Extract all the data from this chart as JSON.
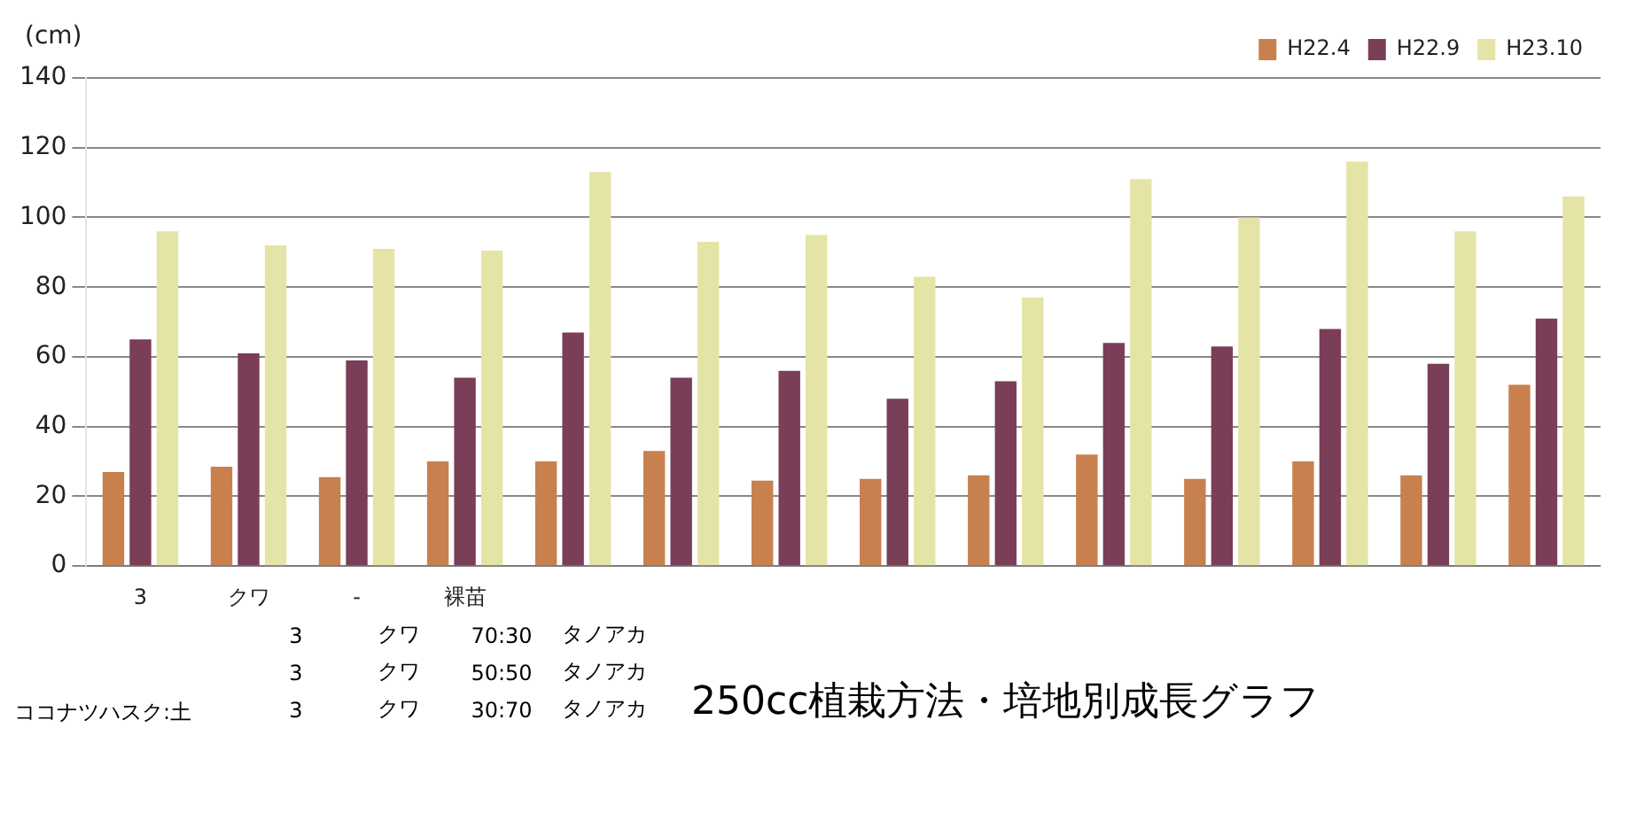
{
  "chart_data": {
    "type": "bar",
    "title": "250cc植栽方法・培地別成長グラフ",
    "ylabel": "(cm)",
    "categories": [
      "3",
      "クワ",
      "-",
      "裸苗",
      null,
      null,
      null,
      null,
      null,
      null,
      null,
      null,
      null,
      null
    ],
    "series": [
      {
        "name": "H22.4",
        "color": "#c8804e",
        "values": [
          27,
          28.5,
          25.5,
          30,
          30,
          33,
          24.5,
          25,
          26,
          32,
          25,
          30,
          26,
          52
        ]
      },
      {
        "name": "H22.9",
        "color": "#7a3e58",
        "values": [
          65,
          61,
          59,
          54,
          67,
          54,
          56,
          48,
          53,
          64,
          63,
          68,
          58,
          71
        ]
      },
      {
        "name": "H23.10",
        "color": "#e4e4a6",
        "values": [
          96,
          92,
          91,
          90.5,
          113,
          93,
          95,
          83,
          77,
          111,
          100,
          116,
          96,
          106
        ]
      }
    ],
    "ylim": [
      0,
      140
    ],
    "yticks": [
      0,
      20,
      40,
      60,
      80,
      100,
      120,
      140
    ],
    "grid": "y",
    "legend": "top right",
    "annotations": [
      "3",
      "クワ",
      "70:30",
      "タノアカ",
      "3",
      "クワ",
      "50:50",
      "タノアカ",
      "3",
      "クワ",
      "30:70",
      "タノアカ",
      "ココナツハスク:土"
    ]
  }
}
